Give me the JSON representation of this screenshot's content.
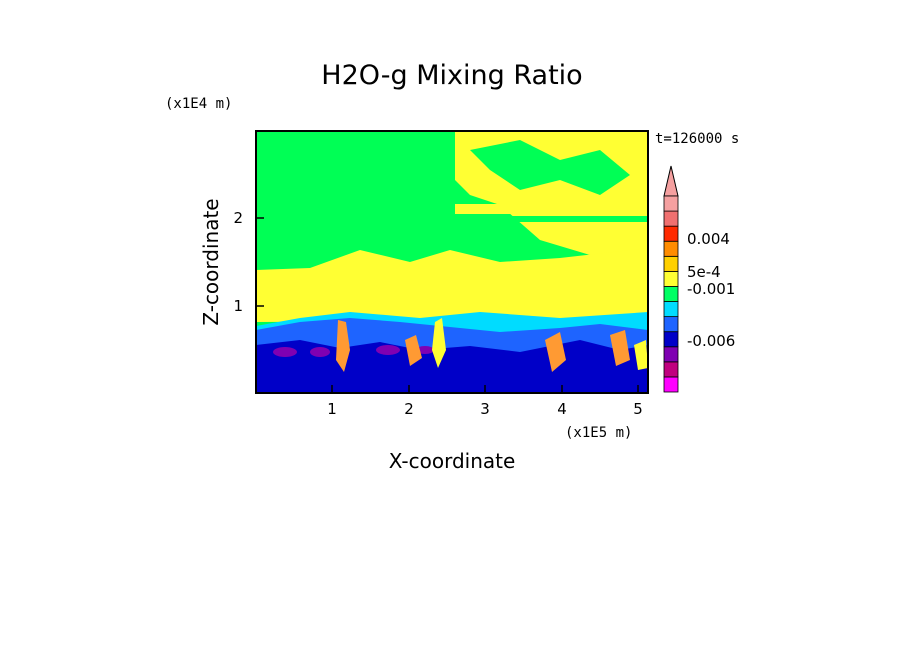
{
  "chart_data": {
    "type": "heatmap",
    "title": "H2O-g Mixing Ratio",
    "xlabel": "X-coordinate",
    "ylabel": "Z-coordinate",
    "x_scale_label": "(x1E5 m)",
    "y_scale_label": "(x1E4 m)",
    "time_label": "t=126000 s",
    "xlim": [
      0,
      5.1
    ],
    "ylim": [
      0,
      2.95
    ],
    "x_ticks": [
      "1",
      "2",
      "3",
      "4",
      "5"
    ],
    "y_ticks": [
      "1",
      "2"
    ],
    "colorbar": {
      "labels": [
        "0.004",
        "5e-4",
        "-0.001",
        "-0.006"
      ],
      "colors": [
        "#ff00ff",
        "#c0007f",
        "#7f00b2",
        "#0000c8",
        "#1e64ff",
        "#00dcff",
        "#00ff64",
        "#ffff33",
        "#ffd000",
        "#ff8c00",
        "#ff2a00",
        "#f07070",
        "#f5a0a0"
      ]
    },
    "regions": [
      {
        "level": "green",
        "color": "#00ff55",
        "description_area": "upper layer z > 1.3"
      },
      {
        "level": "yellow",
        "color": "#ffff33",
        "description_area": "layer z 0.9–1.4 and upper right"
      },
      {
        "level": "cyan",
        "color": "#00dcff",
        "description_area": "z ~0.8"
      },
      {
        "level": "blue",
        "color": "#1e64ff",
        "description_area": "z 0.3–0.8"
      },
      {
        "level": "dark-blue",
        "color": "#0000c8",
        "description_area": "z < 0.6"
      },
      {
        "level": "purple",
        "color": "#7f00b2",
        "description_area": "small patches near z 0.45"
      },
      {
        "level": "orange",
        "color": "#ff9a33",
        "description_area": "plumes near x 1.2, 2.2, 4.2, 5.0"
      }
    ]
  }
}
